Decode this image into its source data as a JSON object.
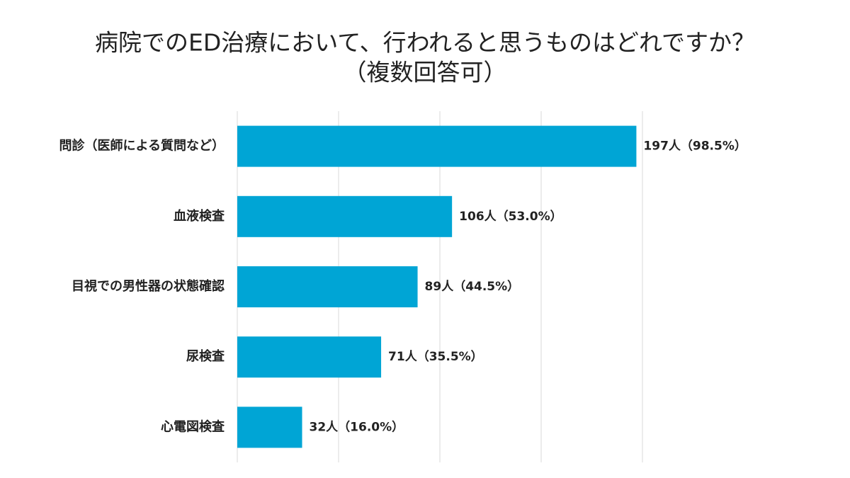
{
  "chart_data": {
    "type": "bar",
    "orientation": "horizontal",
    "title": "病院でのED治療において、行われると思うものはどれですか？",
    "subtitle": "（複数回答可）",
    "categories": [
      "問診（医師による質問など）",
      "血液検査",
      "目視での男性器の状態確認",
      "尿検査",
      "心電図検査"
    ],
    "values": [
      98.5,
      53.0,
      44.5,
      35.5,
      16.0
    ],
    "value_labels": [
      "197人（98.5%）",
      "106人（53.0%）",
      "89人（44.5%）",
      "71人（35.5%）",
      "32人（16.0%）"
    ],
    "color": "#00a5d5",
    "xlim": [
      0,
      100
    ],
    "xticks": [
      0,
      25,
      50,
      75,
      100
    ],
    "grid": true
  }
}
